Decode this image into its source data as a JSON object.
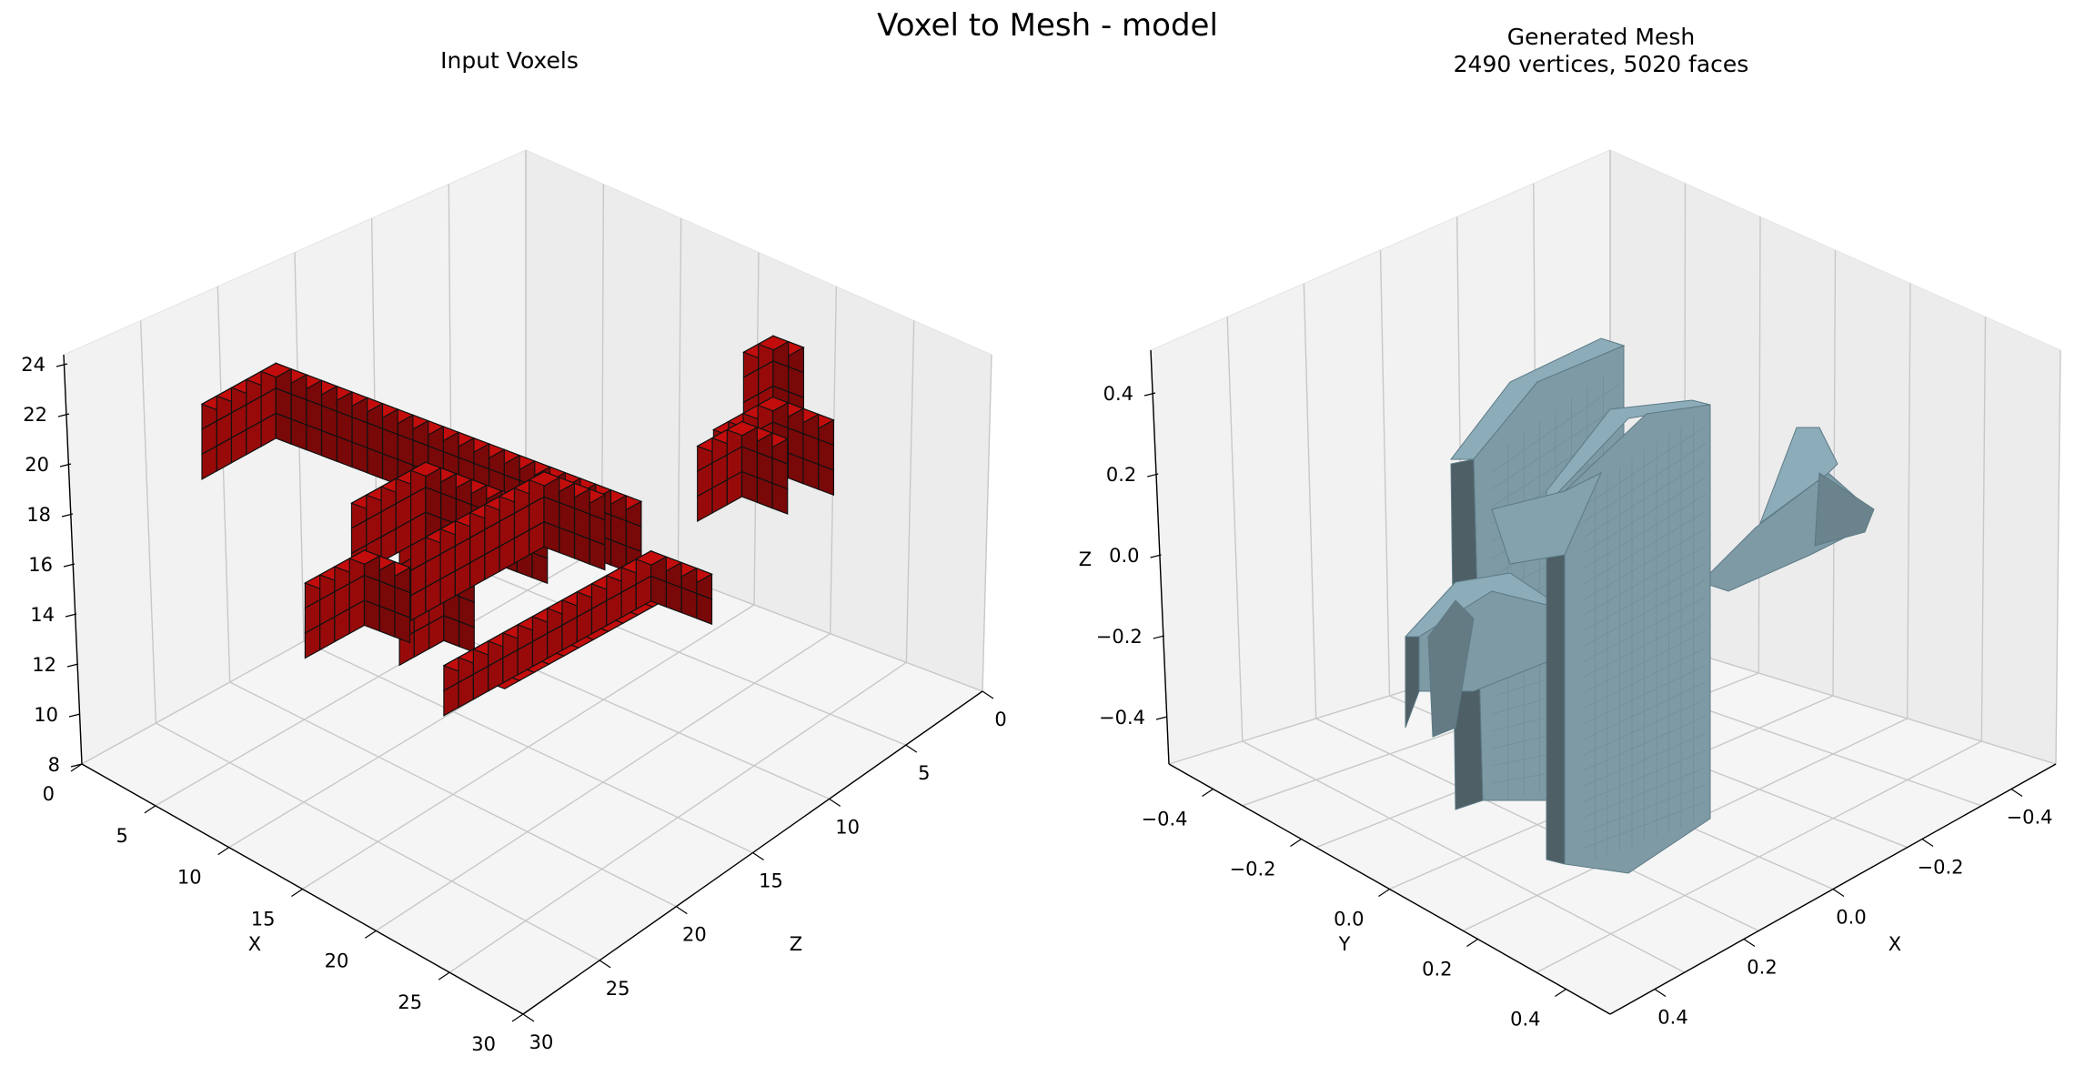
{
  "figure_title": "Voxel to Mesh - model",
  "colors": {
    "voxel_face": "#c30d0d",
    "voxel_edge": "#111111",
    "mesh_face": "#7d9aa5",
    "mesh_edge": "#5c7a86",
    "pane": "#f2f2f2",
    "grid": "#c8c8c8"
  },
  "chart_data": [
    {
      "type": "voxel3d",
      "title": "Input Voxels",
      "xlabel": "X",
      "zlabel_floor": "Z",
      "x_ticks": [
        "0",
        "5",
        "10",
        "15",
        "20",
        "25",
        "30"
      ],
      "z_ticks": [
        "0",
        "5",
        "10",
        "15",
        "20",
        "25",
        "30"
      ],
      "vertical_ticks": [
        "8",
        "10",
        "12",
        "14",
        "16",
        "18",
        "20",
        "22",
        "24"
      ],
      "x_range": [
        0,
        30
      ],
      "z_range": [
        0,
        30
      ],
      "vertical_range": [
        8,
        24
      ],
      "grid": true
    },
    {
      "type": "mesh3d",
      "title": "Generated Mesh",
      "subtitle": "2490 vertices, 5020 faces",
      "vertices": 2490,
      "faces": 5020,
      "ylabel": "Y",
      "xlabel": "X",
      "zlabel": "Z",
      "y_ticks": [
        "−0.4",
        "−0.2",
        "0.0",
        "0.2",
        "0.4"
      ],
      "x_ticks": [
        "−0.4",
        "−0.2",
        "0.0",
        "0.2",
        "0.4"
      ],
      "z_ticks": [
        "0.4",
        "0.2",
        "0.0",
        "−0.2",
        "−0.4"
      ],
      "range": [
        -0.5,
        0.5
      ],
      "grid": true
    }
  ]
}
